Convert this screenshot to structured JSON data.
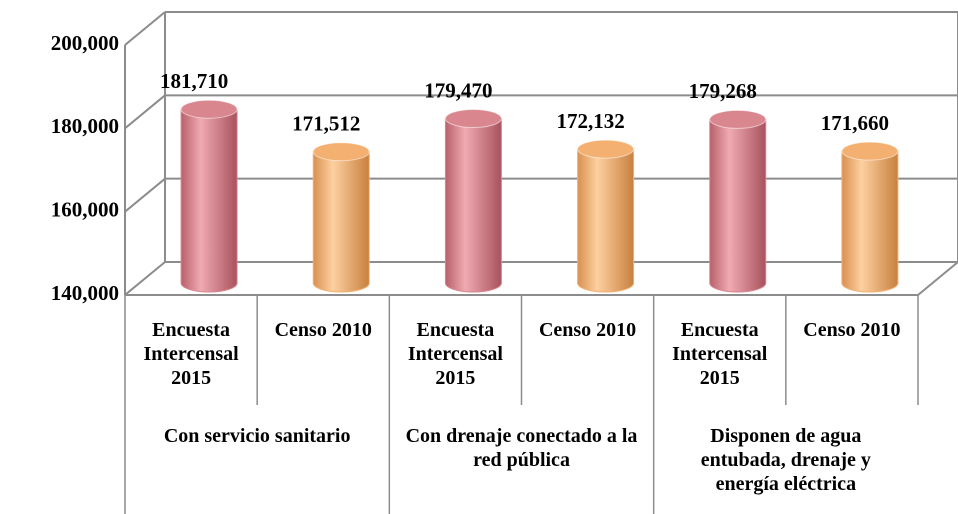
{
  "chart_data": {
    "type": "cylinder_bar",
    "categories": [
      "Encuesta Intercensal 2015",
      "Censo 2010",
      "Encuesta Intercensal 2015",
      "Censo 2010",
      "Encuesta Intercensal 2015",
      "Censo 2010"
    ],
    "groups": [
      "Con servicio sanitario",
      "Con drenaje conectado a la red pública",
      "Disponen de agua entubada, drenaje y energía eléctrica"
    ],
    "values": [
      181710,
      171512,
      179470,
      172132,
      179268,
      171660
    ],
    "value_labels": [
      "181,710",
      "171,512",
      "179,470",
      "172,132",
      "179,268",
      "171,660"
    ],
    "colors": [
      "#d9868f",
      "#f3b070",
      "#d9868f",
      "#f3b070",
      "#d9868f",
      "#f3b070"
    ],
    "ylim": [
      140000,
      200000
    ],
    "yticks": [
      {
        "value": 140000,
        "label": "140,000"
      },
      {
        "value": 160000,
        "label": "160,000"
      },
      {
        "value": 180000,
        "label": "180,000"
      },
      {
        "value": 200000,
        "label": "200,000"
      }
    ],
    "grid": true
  }
}
